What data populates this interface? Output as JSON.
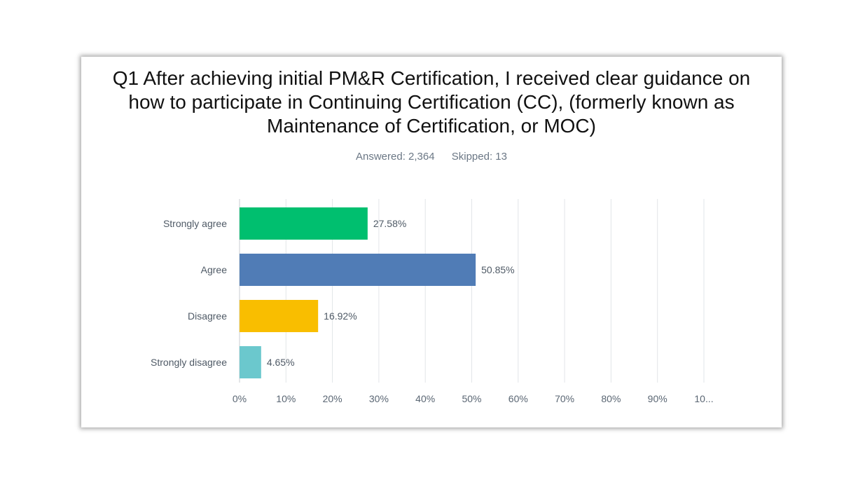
{
  "header": {
    "title": "Q1 After achieving initial PM&R Certification, I received clear guidance on how to participate in Continuing Certification (CC), (formerly known as Maintenance of Certification, or MOC)",
    "answered": "Answered: 2,364",
    "skipped": "Skipped: 13"
  },
  "chart_data": {
    "type": "bar",
    "orientation": "horizontal",
    "categories": [
      "Strongly agree",
      "Agree",
      "Disagree",
      "Strongly disagree"
    ],
    "values": [
      27.58,
      50.85,
      16.92,
      4.65
    ],
    "value_labels": [
      "27.58%",
      "50.85%",
      "16.92%",
      "4.65%"
    ],
    "colors": [
      "#00bf6f",
      "#507cb6",
      "#f9be00",
      "#6bc8cd"
    ],
    "xlim": [
      0,
      100
    ],
    "xticks": [
      "0%",
      "10%",
      "20%",
      "30%",
      "40%",
      "50%",
      "60%",
      "70%",
      "80%",
      "90%",
      "10..."
    ],
    "grid": true,
    "title": "",
    "xlabel": "",
    "ylabel": ""
  }
}
